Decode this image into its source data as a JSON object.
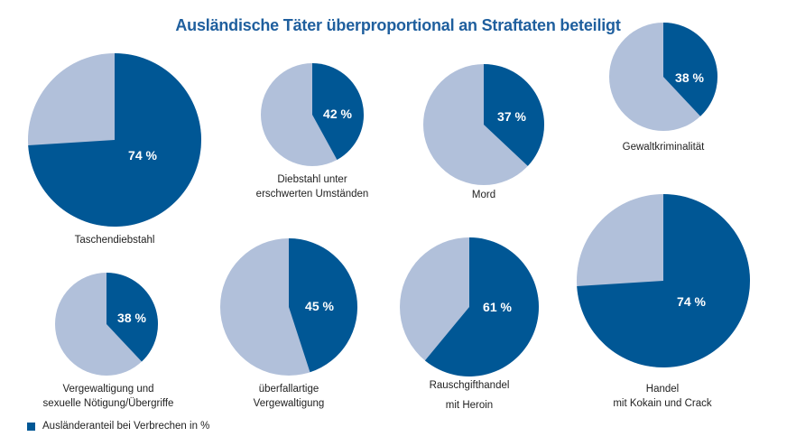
{
  "colors": {
    "foreign": "#005795",
    "rest": "#b1c0da",
    "title": "#1f5f9e"
  },
  "chart_data": {
    "type": "pie",
    "title": "Ausländische Täter überproportional an Straftaten beteiligt",
    "legend": {
      "label": "Ausländeranteil bei Verbrechen in %",
      "placement": "bottom-left"
    },
    "pies": [
      {
        "label_lines": [
          "Taschendiebstahl"
        ],
        "value": 74,
        "value_label": "74 %"
      },
      {
        "label_lines": [
          "Diebstahl unter",
          "erschwerten Umständen"
        ],
        "value": 42,
        "value_label": "42 %"
      },
      {
        "label_lines": [
          "Mord"
        ],
        "value": 37,
        "value_label": "37 %"
      },
      {
        "label_lines": [
          "Gewaltkriminalität"
        ],
        "value": 38,
        "value_label": "38 %"
      },
      {
        "label_lines": [
          "Vergewaltigung und",
          "sexuelle Nötigung/Übergriffe"
        ],
        "value": 38,
        "value_label": "38 %"
      },
      {
        "label_lines": [
          "überfallartige",
          "Vergewaltigung"
        ],
        "value": 45,
        "value_label": "45 %"
      },
      {
        "label_lines": [
          "Rauschgifthandel",
          "mit Heroin"
        ],
        "value": 61,
        "value_label": "61 %"
      },
      {
        "label_lines": [
          "Handel",
          "mit Kokain und Crack"
        ],
        "value": 74,
        "value_label": "74 %"
      }
    ]
  }
}
